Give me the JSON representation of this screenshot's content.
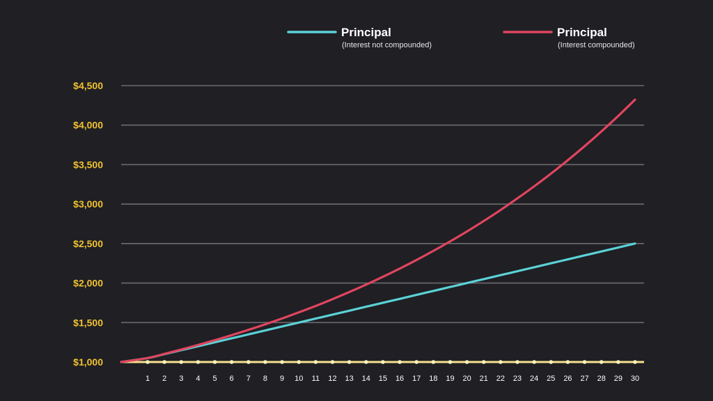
{
  "chart_data": {
    "type": "line",
    "x": [
      0,
      1,
      2,
      3,
      4,
      5,
      6,
      7,
      8,
      9,
      10,
      11,
      12,
      13,
      14,
      15,
      16,
      17,
      18,
      19,
      20,
      21,
      22,
      23,
      24,
      25,
      26,
      27,
      28,
      29,
      30
    ],
    "x_tick_labels": [
      "1",
      "2",
      "3",
      "4",
      "5",
      "6",
      "7",
      "8",
      "9",
      "10",
      "11",
      "12",
      "13",
      "14",
      "15",
      "16",
      "17",
      "18",
      "19",
      "20",
      "21",
      "22",
      "23",
      "24",
      "25",
      "26",
      "27",
      "28",
      "29",
      "30"
    ],
    "y_tick_labels": [
      "$1,000",
      "$1,500",
      "$2,000",
      "$2,500",
      "$3,000",
      "$3,500",
      "$4,000",
      "$4,500"
    ],
    "ylim": [
      1000,
      4500
    ],
    "grid": true,
    "legend_position": "top-right",
    "series": [
      {
        "name": "Principal",
        "subtitle": "(Interest not compounded)",
        "color": "#5bd2d6",
        "values": [
          1000,
          1050,
          1100,
          1150,
          1200,
          1250,
          1300,
          1350,
          1400,
          1450,
          1500,
          1550,
          1600,
          1650,
          1700,
          1750,
          1800,
          1850,
          1900,
          1950,
          2000,
          2050,
          2100,
          2150,
          2200,
          2250,
          2300,
          2350,
          2400,
          2450,
          2500
        ]
      },
      {
        "name": "Principal",
        "subtitle": "(Interest compounded)",
        "color": "#e0455f",
        "values": [
          1000,
          1050,
          1103,
          1158,
          1216,
          1276,
          1340,
          1407,
          1477,
          1551,
          1629,
          1710,
          1796,
          1886,
          1980,
          2079,
          2183,
          2292,
          2407,
          2527,
          2653,
          2786,
          2925,
          3072,
          3225,
          3386,
          3556,
          3733,
          3920,
          4116,
          4322
        ]
      }
    ],
    "baseline_color": "#f7e08a",
    "axis_color": "#f2c230"
  }
}
